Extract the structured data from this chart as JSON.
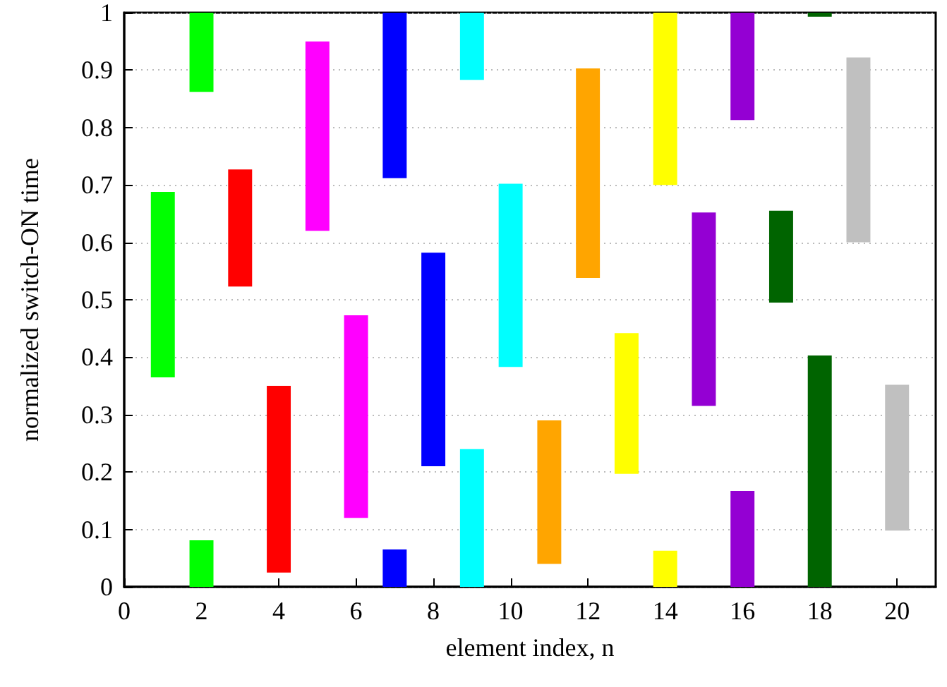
{
  "chart_data": {
    "type": "bar",
    "xlabel": "element index, n",
    "ylabel": "normalized switch-ON time",
    "series": [
      {
        "x": [
          1,
          2,
          3,
          4,
          5,
          6,
          7,
          8,
          9,
          10,
          11,
          12,
          13,
          14,
          15,
          16,
          17,
          18,
          19,
          20
        ],
        "base": [
          0.365,
          0.862,
          0.523,
          0.025,
          0.62,
          0.12,
          0.712,
          0.21,
          0.883,
          0.383,
          0.04,
          0.538,
          0.197,
          0.7,
          0.315,
          0.813,
          0.495,
          0.993,
          0.6,
          0.098
        ],
        "values": [
          0.323,
          0.138,
          0.204,
          0.325,
          0.33,
          0.353,
          0.288,
          0.372,
          0.117,
          0.319,
          0.25,
          0.365,
          0.245,
          0.3,
          0.337,
          0.187,
          0.16,
          0.007,
          0.322,
          0.254
        ],
        "colors": [
          "#00ff00",
          "#00ff00",
          "#ff0000",
          "#ff0000",
          "#ff00ff",
          "#ff00ff",
          "#0000ff",
          "#0000ff",
          "#00ffff",
          "#00ffff",
          "#ffa500",
          "#ffa500",
          "#ffff00",
          "#ffff00",
          "#9400d3",
          "#9400d3",
          "#006400",
          "#006400",
          "#c0c0c0",
          "#c0c0c0"
        ]
      },
      {
        "x": [
          2,
          7,
          9,
          14,
          16,
          18
        ],
        "base": [
          0,
          0,
          0,
          0,
          0,
          0
        ],
        "values": [
          0.081,
          0.065,
          0.24,
          0.063,
          0.167,
          0.403
        ],
        "colors": [
          "#00ff00",
          "#0000ff",
          "#00ffff",
          "#ffff00",
          "#9400d3",
          "#006400"
        ]
      }
    ],
    "xlim": [
      0,
      21
    ],
    "xticks": [
      0,
      2,
      4,
      6,
      8,
      10,
      12,
      14,
      16,
      18,
      20
    ],
    "ylim": [
      0,
      1
    ],
    "yticks": [
      0,
      0.1,
      0.2,
      0.3,
      0.4,
      0.5,
      0.6,
      0.7,
      0.8,
      0.9,
      1
    ],
    "grid": "y"
  }
}
